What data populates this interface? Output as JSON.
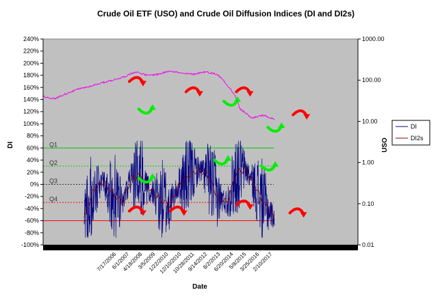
{
  "chart_data": {
    "type": "line",
    "title": "Crude Oil ETF (USO) and Crude Oil Diffusion Indices (DI and DI2s)",
    "xlabel": "Date",
    "ylabel": "DI",
    "y2label": "USO",
    "ylim": [
      -1.0,
      2.4
    ],
    "y2lim": [
      0.01,
      1000
    ],
    "y2scale": "log",
    "yticks": [
      "240%",
      "220%",
      "200%",
      "180%",
      "160%",
      "140%",
      "120%",
      "100%",
      "80%",
      "60%",
      "40%",
      "20%",
      "0%",
      "-20%",
      "-40%",
      "-60%",
      "-80%",
      "-100%"
    ],
    "y2ticks": [
      "1000.00",
      "100.00",
      "10.00",
      "1.00",
      "0.10",
      "0.01"
    ],
    "xticks": [
      "7/17/2006",
      "6/1/2007",
      "4/18/2008",
      "3/5/2009",
      "1/22/2010",
      "12/10/2010",
      "10/28/2011",
      "9/14/2012",
      "8/2/2013",
      "6/20/2014",
      "5/8/2015",
      "3/25/2016",
      "2/10/2017"
    ],
    "plot_background": "#c0c0c0",
    "grid": false,
    "legend_position": "right",
    "levels": [
      {
        "label": "Q1",
        "value": 0.6,
        "color": "#00cc00",
        "style": "solid"
      },
      {
        "label": "Q2",
        "value": 0.3,
        "color": "#00cc00",
        "style": "dotted"
      },
      {
        "label": "Q3",
        "value": 0.0,
        "color": "#333333",
        "style": "dotted"
      },
      {
        "label": "Q4",
        "value": -0.3,
        "color": "#ff0000",
        "style": "dotted"
      },
      {
        "label": "",
        "value": -0.6,
        "color": "#ff0000",
        "style": "solid"
      }
    ],
    "series": [
      {
        "name": "DI",
        "color": "#000080",
        "axis": "left"
      },
      {
        "name": "DI2s",
        "color": "#8b0000",
        "axis": "left"
      },
      {
        "name": "",
        "color": "#ee00ee",
        "axis": "right"
      }
    ],
    "uso_x": [
      0,
      0.05,
      0.1,
      0.15,
      0.2,
      0.25,
      0.3,
      0.35,
      0.4,
      0.45,
      0.5,
      0.55,
      0.6,
      0.65,
      0.7,
      0.75,
      0.8,
      0.85,
      0.9,
      0.95,
      1.0
    ],
    "uso_y": [
      40,
      35,
      47,
      60,
      70,
      85,
      100,
      120,
      160,
      130,
      140,
      170,
      145,
      140,
      160,
      140,
      70,
      20,
      12,
      14,
      11
    ],
    "di2s_x": [
      0,
      0.05,
      0.1,
      0.15,
      0.2,
      0.25,
      0.3,
      0.35,
      0.4,
      0.45,
      0.5,
      0.55,
      0.6,
      0.65,
      0.7,
      0.75,
      0.8,
      0.85,
      0.9,
      0.95,
      1.0
    ],
    "di2s_y": [
      -0.55,
      -0.1,
      0.05,
      -0.15,
      -0.3,
      0.1,
      0.15,
      -0.1,
      -0.25,
      -0.35,
      0.0,
      0.15,
      0.25,
      0.15,
      -0.2,
      -0.3,
      0.2,
      0.25,
      -0.05,
      -0.35,
      -0.55
    ],
    "arrows": [
      {
        "type": "red-down",
        "x": 0.3,
        "y": 1.72
      },
      {
        "type": "green-up",
        "x": 0.33,
        "y": 1.22
      },
      {
        "type": "red-down",
        "x": 0.48,
        "y": 1.55
      },
      {
        "type": "green-up",
        "x": 0.6,
        "y": 1.35
      },
      {
        "type": "red-down",
        "x": 0.64,
        "y": 1.55
      },
      {
        "type": "green-up",
        "x": 0.74,
        "y": 0.92
      },
      {
        "type": "red-down",
        "x": 0.82,
        "y": 1.17
      },
      {
        "type": "green-up",
        "x": 0.33,
        "y": 0.08
      },
      {
        "type": "red-down",
        "x": 0.3,
        "y": -0.42
      },
      {
        "type": "red-down",
        "x": 0.43,
        "y": -0.42
      },
      {
        "type": "green-up",
        "x": 0.57,
        "y": 0.38
      },
      {
        "type": "red-down",
        "x": 0.64,
        "y": -0.32
      },
      {
        "type": "green-up",
        "x": 0.72,
        "y": 0.28
      },
      {
        "type": "red-down",
        "x": 0.81,
        "y": -0.45
      }
    ]
  }
}
